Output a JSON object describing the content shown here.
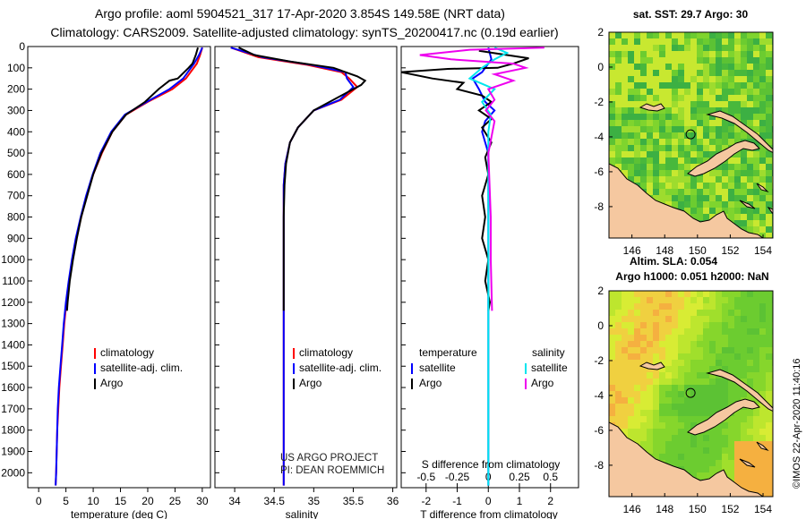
{
  "header": {
    "line1": "Argo profile: aoml 5904521_317 17-Apr-2020 3.854S 149.58E (NRT data)",
    "line2": "Climatology: CARS2009. Satellite-adjusted climatology: synTS_20200417.nc (0.19d earlier)"
  },
  "colors": {
    "climatology": "#ff0000",
    "satellite": "#0000ff",
    "argo": "#000000",
    "sat_sal": "#00e5ee",
    "argo_sal": "#ee00ee",
    "land": "#f5c8a0"
  },
  "credit": {
    "line1": "US ARGO PROJECT",
    "line2": "PI: DEAN ROEMMICH"
  },
  "imos": "©IMOS 22-Apr-2020 11:40:16",
  "chart_data": [
    {
      "type": "line",
      "name": "temperature",
      "xlabel": "temperature (deg C)",
      "xlim": [
        -2,
        31.5
      ],
      "ylim": [
        2070,
        0
      ],
      "xticks": [
        0,
        5,
        10,
        15,
        20,
        25,
        30
      ],
      "yticks": [
        0,
        100,
        200,
        300,
        400,
        500,
        600,
        700,
        800,
        900,
        1000,
        1100,
        1200,
        1300,
        1400,
        1500,
        1600,
        1700,
        1800,
        1900,
        2000
      ],
      "legend": [
        "climatology",
        "satellite-adj. clim.",
        "Argo"
      ],
      "series": [
        {
          "name": "climatology",
          "color": "#ff0000",
          "points": [
            [
              30,
              5
            ],
            [
              29.6,
              40
            ],
            [
              29,
              80
            ],
            [
              27,
              150
            ],
            [
              24.5,
              200
            ],
            [
              20,
              260
            ],
            [
              16,
              320
            ],
            [
              13.5,
              400
            ],
            [
              11.6,
              500
            ],
            [
              10,
              600
            ],
            [
              8.8,
              700
            ],
            [
              7.8,
              800
            ],
            [
              6.9,
              900
            ],
            [
              6.2,
              1000
            ],
            [
              5.6,
              1100
            ],
            [
              5.1,
              1200
            ],
            [
              4.7,
              1300
            ],
            [
              4.4,
              1400
            ],
            [
              4.1,
              1500
            ],
            [
              3.8,
              1600
            ],
            [
              3.6,
              1700
            ],
            [
              3.4,
              1800
            ],
            [
              3.3,
              1900
            ],
            [
              3.2,
              2000
            ],
            [
              3.1,
              2060
            ]
          ]
        },
        {
          "name": "satellite-adj. clim.",
          "color": "#0000ff",
          "points": [
            [
              30,
              5
            ],
            [
              29.4,
              40
            ],
            [
              28.5,
              80
            ],
            [
              26.5,
              150
            ],
            [
              24,
              200
            ],
            [
              19.8,
              260
            ],
            [
              15.8,
              320
            ],
            [
              13.3,
              400
            ],
            [
              11.3,
              500
            ],
            [
              9.9,
              600
            ],
            [
              8.7,
              700
            ],
            [
              7.7,
              800
            ],
            [
              6.8,
              900
            ],
            [
              6.1,
              1000
            ],
            [
              5.5,
              1100
            ],
            [
              5.0,
              1200
            ],
            [
              4.6,
              1300
            ],
            [
              4.3,
              1400
            ],
            [
              4.0,
              1500
            ],
            [
              3.7,
              1600
            ],
            [
              3.5,
              1700
            ],
            [
              3.4,
              1800
            ],
            [
              3.3,
              1900
            ],
            [
              3.2,
              2000
            ],
            [
              3.1,
              2060
            ]
          ]
        },
        {
          "name": "Argo",
          "color": "#000000",
          "points": [
            [
              29.2,
              5
            ],
            [
              28.8,
              40
            ],
            [
              28.2,
              80
            ],
            [
              27.5,
              100
            ],
            [
              25.5,
              150
            ],
            [
              24,
              160
            ],
            [
              22,
              200
            ],
            [
              19.5,
              260
            ],
            [
              16,
              320
            ],
            [
              13.5,
              400
            ],
            [
              11.5,
              500
            ],
            [
              10,
              600
            ],
            [
              8.9,
              700
            ],
            [
              7.8,
              800
            ],
            [
              7.0,
              900
            ],
            [
              6.3,
              1000
            ],
            [
              5.7,
              1100
            ],
            [
              5.3,
              1200
            ],
            [
              5.2,
              1240
            ]
          ]
        }
      ]
    },
    {
      "type": "line",
      "name": "salinity",
      "xlabel": "salinity",
      "xlim": [
        33.75,
        36.05
      ],
      "ylim": [
        2070,
        0
      ],
      "xticks": [
        34,
        34.5,
        35,
        35.5,
        36
      ],
      "legend": [
        "climatology",
        "satellite-adj. clim.",
        "Argo"
      ],
      "series": [
        {
          "name": "climatology",
          "color": "#ff0000",
          "points": [
            [
              33.95,
              5
            ],
            [
              34.3,
              50
            ],
            [
              34.9,
              85
            ],
            [
              35.35,
              120
            ],
            [
              35.45,
              150
            ],
            [
              35.55,
              190
            ],
            [
              35.35,
              250
            ],
            [
              35.0,
              300
            ],
            [
              34.8,
              380
            ],
            [
              34.7,
              450
            ],
            [
              34.64,
              550
            ],
            [
              34.62,
              650
            ],
            [
              34.62,
              800
            ],
            [
              34.62,
              1000
            ],
            [
              34.62,
              1200
            ],
            [
              34.62,
              1400
            ],
            [
              34.62,
              1600
            ],
            [
              34.62,
              1800
            ],
            [
              34.62,
              2000
            ],
            [
              34.62,
              2060
            ]
          ]
        },
        {
          "name": "satellite-adj. clim.",
          "color": "#0000ff",
          "points": [
            [
              33.95,
              5
            ],
            [
              34.35,
              50
            ],
            [
              34.95,
              85
            ],
            [
              35.4,
              120
            ],
            [
              35.42,
              150
            ],
            [
              35.5,
              190
            ],
            [
              35.33,
              250
            ],
            [
              35.0,
              300
            ],
            [
              34.8,
              380
            ],
            [
              34.7,
              450
            ],
            [
              34.64,
              550
            ],
            [
              34.62,
              650
            ],
            [
              34.62,
              800
            ],
            [
              34.62,
              1000
            ],
            [
              34.62,
              1200
            ],
            [
              34.62,
              1400
            ],
            [
              34.62,
              1600
            ],
            [
              34.62,
              1800
            ],
            [
              34.62,
              2000
            ],
            [
              34.62,
              2060
            ]
          ]
        },
        {
          "name": "Argo",
          "color": "#000000",
          "points": [
            [
              34.05,
              5
            ],
            [
              34.25,
              40
            ],
            [
              34.7,
              70
            ],
            [
              35.25,
              100
            ],
            [
              35.55,
              140
            ],
            [
              35.65,
              160
            ],
            [
              35.6,
              180
            ],
            [
              35.35,
              230
            ],
            [
              35.0,
              300
            ],
            [
              34.8,
              380
            ],
            [
              34.7,
              450
            ],
            [
              34.65,
              550
            ],
            [
              34.63,
              650
            ],
            [
              34.62,
              800
            ],
            [
              34.62,
              1000
            ],
            [
              34.62,
              1200
            ],
            [
              34.62,
              1240
            ]
          ]
        }
      ]
    },
    {
      "type": "line",
      "name": "difference",
      "xlabel": "T difference from climatology",
      "xlim": [
        -2.8,
        2.9
      ],
      "ylim": [
        2070,
        0
      ],
      "xticks": [
        -2,
        -1,
        0,
        1,
        2
      ],
      "top_label": "S difference from climatology",
      "top_ticks": [
        "-0.5",
        "-0.25",
        "0",
        "0.25",
        "0.5"
      ],
      "top_tick_values": [
        -0.5,
        -0.25,
        0,
        0.25,
        0.5
      ],
      "s_scale": 4,
      "legend_temperature": {
        "heading": "temperature",
        "items": [
          "satellite",
          "Argo"
        ]
      },
      "legend_salinity": {
        "heading": "salinity",
        "items": [
          "satellite",
          "Argo"
        ]
      },
      "series": [
        {
          "name": "T satellite",
          "color": "#0000ff",
          "points": [
            [
              0,
              5
            ],
            [
              0.1,
              60
            ],
            [
              -0.2,
              120
            ],
            [
              -0.5,
              150
            ],
            [
              -0.3,
              200
            ],
            [
              -0.1,
              260
            ],
            [
              0.2,
              300
            ],
            [
              -0.1,
              350
            ],
            [
              -0.2,
              400
            ],
            [
              0,
              500
            ],
            [
              0,
              700
            ],
            [
              0,
              900
            ],
            [
              0,
              1100
            ],
            [
              0,
              1300
            ],
            [
              0,
              1500
            ],
            [
              0,
              1700
            ],
            [
              0,
              1900
            ],
            [
              0,
              2060
            ]
          ]
        },
        {
          "name": "T Argo",
          "color": "#000000",
          "points": [
            [
              -0.3,
              20
            ],
            [
              0.6,
              40
            ],
            [
              1.3,
              55
            ],
            [
              0.8,
              80
            ],
            [
              0.3,
              100
            ],
            [
              -1.3,
              105
            ],
            [
              -2.8,
              120
            ],
            [
              -1.8,
              150
            ],
            [
              -0.8,
              170
            ],
            [
              -1.0,
              200
            ],
            [
              -0.2,
              230
            ],
            [
              0.1,
              260
            ],
            [
              -0.3,
              300
            ],
            [
              0.1,
              340
            ],
            [
              -0.2,
              380
            ],
            [
              0.1,
              450
            ],
            [
              -0.1,
              520
            ],
            [
              0.0,
              600
            ],
            [
              -0.2,
              700
            ],
            [
              -0.1,
              800
            ],
            [
              -0.2,
              900
            ],
            [
              0,
              1000
            ],
            [
              -0.1,
              1100
            ],
            [
              0.05,
              1200
            ],
            [
              0,
              1240
            ]
          ]
        },
        {
          "name": "S satellite",
          "color": "#00e5ee",
          "points": [
            [
              0.05,
              5
            ],
            [
              0.15,
              30
            ],
            [
              0.05,
              60
            ],
            [
              -0.05,
              100
            ],
            [
              -0.15,
              150
            ],
            [
              0.05,
              200
            ],
            [
              -0.05,
              260
            ],
            [
              0.02,
              320
            ],
            [
              0,
              400
            ],
            [
              0,
              500
            ],
            [
              0,
              700
            ],
            [
              0,
              900
            ],
            [
              0,
              1100
            ],
            [
              0,
              1300
            ],
            [
              0,
              1500
            ],
            [
              0,
              1700
            ],
            [
              0,
              1900
            ],
            [
              0,
              2060
            ]
          ]
        },
        {
          "name": "S Argo",
          "color": "#ee00ee",
          "points": [
            [
              0.45,
              5
            ],
            [
              -0.15,
              15
            ],
            [
              -0.55,
              40
            ],
            [
              -0.3,
              60
            ],
            [
              0.2,
              80
            ],
            [
              0.3,
              100
            ],
            [
              0.05,
              130
            ],
            [
              0.2,
              160
            ],
            [
              0.0,
              200
            ],
            [
              0.05,
              250
            ],
            [
              -0.02,
              300
            ],
            [
              0.05,
              350
            ],
            [
              0,
              500
            ],
            [
              0.02,
              800
            ],
            [
              0.02,
              1000
            ],
            [
              0.03,
              1240
            ]
          ]
        }
      ]
    },
    {
      "type": "heatmap",
      "name": "sst-map",
      "title": "sat. SST: 29.7 Argo: 30",
      "xlim": [
        144.6,
        154.6
      ],
      "ylim": [
        -9.8,
        2
      ],
      "xticks": [
        146,
        148,
        150,
        152,
        154
      ],
      "yticks": [
        2,
        0,
        -2,
        -4,
        -6,
        -8
      ],
      "float_position": [
        149.58,
        -3.854
      ]
    },
    {
      "type": "heatmap",
      "name": "sla-map",
      "title_line1": "Altim. SLA: 0.054",
      "title_line2": "Argo h1000: 0.051 h2000: NaN",
      "xlim": [
        144.6,
        154.6
      ],
      "ylim": [
        -9.8,
        2
      ],
      "xticks": [
        146,
        148,
        150,
        152,
        154
      ],
      "yticks": [
        2,
        0,
        -2,
        -4,
        -6,
        -8
      ],
      "float_position": [
        149.58,
        -3.854
      ]
    }
  ]
}
